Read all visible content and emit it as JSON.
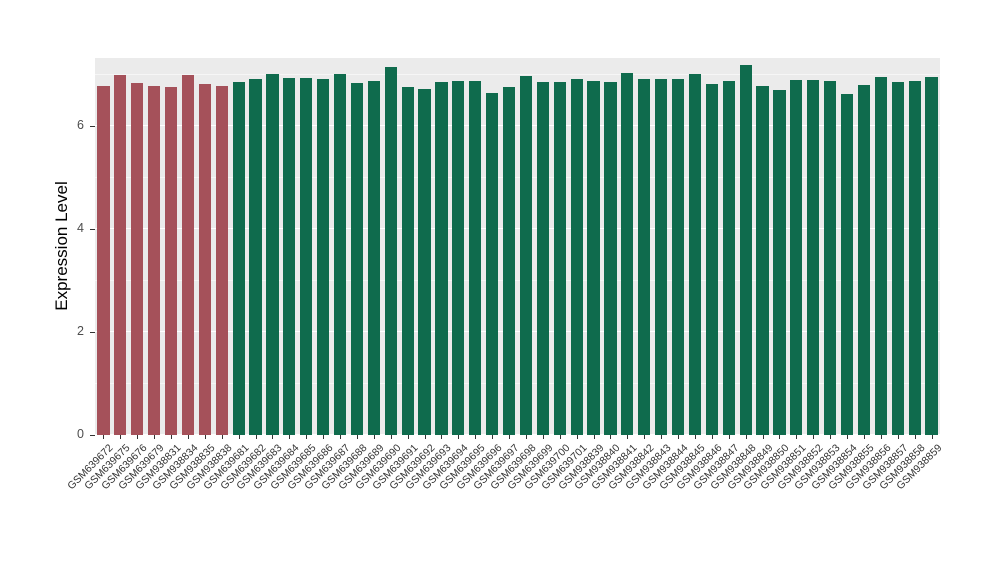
{
  "chart_data": {
    "type": "bar",
    "title": "",
    "xlabel": "",
    "ylabel": "Expression Level",
    "ylim": [
      0,
      7.33
    ],
    "yticks": [
      0,
      2,
      4,
      6
    ],
    "yticks_minor": [
      1,
      3,
      5,
      7
    ],
    "grid": true,
    "legend": false,
    "panel_background": "#EBEBEB",
    "grid_color": "#FFFFFF",
    "group_colors": {
      "A": "#A5515A",
      "B": "#0F6B4D"
    },
    "categories": [
      "GSM639672",
      "GSM639675",
      "GSM639676",
      "GSM639679",
      "GSM938831",
      "GSM938834",
      "GSM938835",
      "GSM938838",
      "GSM639681",
      "GSM639682",
      "GSM639683",
      "GSM639684",
      "GSM639685",
      "GSM639686",
      "GSM639687",
      "GSM639688",
      "GSM639689",
      "GSM639690",
      "GSM639691",
      "GSM639692",
      "GSM639693",
      "GSM639694",
      "GSM639695",
      "GSM639696",
      "GSM639697",
      "GSM639698",
      "GSM639699",
      "GSM639700",
      "GSM639701",
      "GSM938839",
      "GSM938840",
      "GSM938841",
      "GSM938842",
      "GSM938843",
      "GSM938844",
      "GSM938845",
      "GSM938846",
      "GSM938847",
      "GSM938848",
      "GSM938849",
      "GSM938850",
      "GSM938851",
      "GSM938852",
      "GSM938853",
      "GSM938854",
      "GSM938855",
      "GSM938856",
      "GSM938857",
      "GSM938858",
      "GSM938859"
    ],
    "values": [
      6.78,
      7.0,
      6.85,
      6.78,
      6.77,
      7.0,
      6.82,
      6.78,
      6.87,
      6.93,
      7.01,
      6.95,
      6.94,
      6.93,
      7.02,
      6.85,
      6.89,
      7.16,
      6.77,
      6.72,
      6.86,
      6.88,
      6.88,
      6.65,
      6.77,
      6.98,
      6.87,
      6.86,
      6.92,
      6.88,
      6.87,
      7.03,
      6.93,
      6.92,
      6.92,
      7.01,
      6.83,
      6.89,
      7.19,
      6.78,
      6.7,
      6.9,
      6.91,
      6.89,
      6.64,
      6.8,
      6.97,
      6.86,
      6.88,
      6.96
    ],
    "groups": [
      "A",
      "A",
      "A",
      "A",
      "A",
      "A",
      "A",
      "A",
      "B",
      "B",
      "B",
      "B",
      "B",
      "B",
      "B",
      "B",
      "B",
      "B",
      "B",
      "B",
      "B",
      "B",
      "B",
      "B",
      "B",
      "B",
      "B",
      "B",
      "B",
      "B",
      "B",
      "B",
      "B",
      "B",
      "B",
      "B",
      "B",
      "B",
      "B",
      "B",
      "B",
      "B",
      "B",
      "B",
      "B",
      "B",
      "B",
      "B",
      "B",
      "B"
    ]
  }
}
